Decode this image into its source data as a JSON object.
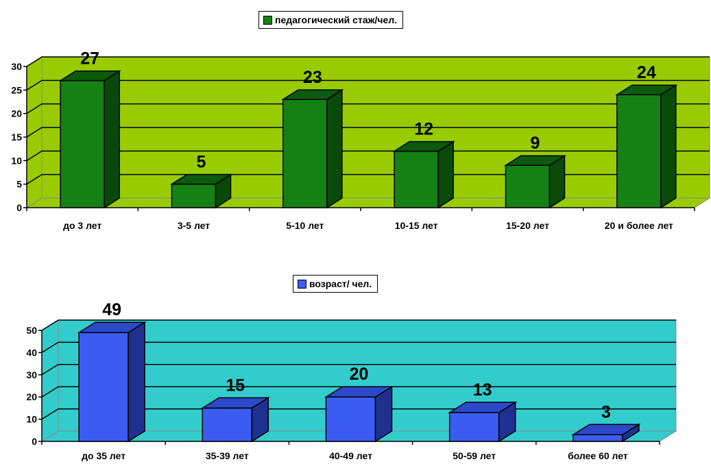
{
  "chart_data": [
    {
      "type": "bar",
      "legend": "педагогический стаж/чел.",
      "categories": [
        "до 3 лет",
        "3-5 лет",
        "5-10 лет",
        "10-15 лет",
        "15-20 лет",
        "20 и более лет"
      ],
      "series": [
        {
          "name": "педагогический стаж/чел.",
          "values": [
            27,
            5,
            23,
            12,
            9,
            24
          ]
        }
      ],
      "yticks": [
        0,
        5,
        10,
        15,
        20,
        25,
        30
      ],
      "ylim": [
        0,
        30
      ],
      "grid": true,
      "legend_position": "top-center",
      "colors": {
        "bar_front": "#158014",
        "bar_top": "#0c5a0b",
        "bar_side": "#0a4a09",
        "wall": "#98cc00"
      }
    },
    {
      "type": "bar",
      "legend": "возраст/ чел.",
      "categories": [
        "до 35 лет",
        "35-39 лет",
        "40-49 лет",
        "50-59 лет",
        "более 60 лет"
      ],
      "series": [
        {
          "name": "возраст/ чел.",
          "values": [
            49,
            15,
            20,
            13,
            3
          ]
        }
      ],
      "yticks": [
        0,
        10,
        20,
        30,
        40,
        50
      ],
      "ylim": [
        0,
        50
      ],
      "grid": true,
      "legend_position": "top-center",
      "colors": {
        "bar_front": "#3a5cf2",
        "bar_top": "#2b49c8",
        "bar_side": "#1f3190",
        "wall": "#33cccc"
      }
    }
  ]
}
